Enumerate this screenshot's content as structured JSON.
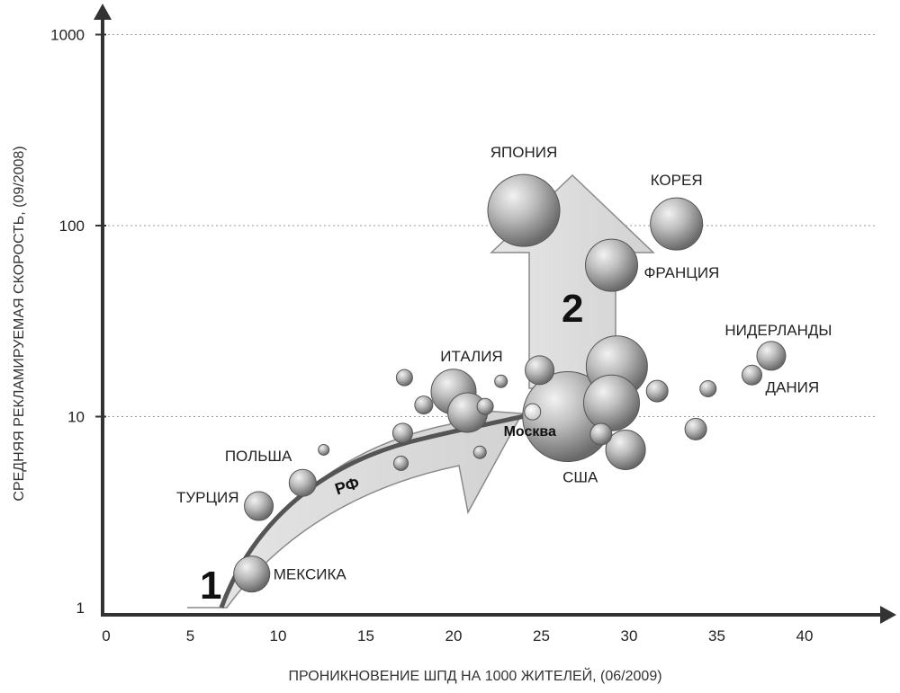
{
  "chart_data": {
    "type": "scatter",
    "xlabel": "ПРОНИКНОВЕНИЕ ШПД НА 1000 ЖИТЕЛЕЙ, (06/2009)",
    "ylabel": "СРЕДНЯЯ РЕКЛАМИРУЕМАЯ СКОРОСТЬ, (09/2008)",
    "xlim": [
      0,
      45
    ],
    "ylim": [
      1,
      1000
    ],
    "y_scale": "log",
    "x_ticks": [
      "0",
      "5",
      "10",
      "15",
      "20",
      "25",
      "30",
      "35",
      "40"
    ],
    "y_ticks": [
      "1",
      "10",
      "100",
      "1000"
    ],
    "grid": "horizontal dotted at 10, 100, 1000",
    "arrow_labels": [
      "1",
      "2"
    ],
    "path_label": "РФ",
    "points": [
      {
        "label": "МЕКСИКА",
        "x": 8.5,
        "y": 1.5,
        "r": 20
      },
      {
        "label": "ТУРЦИЯ",
        "x": 8.9,
        "y": 3.4,
        "r": 16
      },
      {
        "label": "ПОЛЬША",
        "x": 11.4,
        "y": 4.5,
        "r": 15
      },
      {
        "label": "",
        "x": 12.6,
        "y": 6.7,
        "r": 6
      },
      {
        "label": "",
        "x": 17.0,
        "y": 5.7,
        "r": 8
      },
      {
        "label": "",
        "x": 17.1,
        "y": 8.2,
        "r": 11
      },
      {
        "label": "",
        "x": 17.2,
        "y": 16.0,
        "r": 9
      },
      {
        "label": "",
        "x": 18.3,
        "y": 11.5,
        "r": 10
      },
      {
        "label": "ИТАЛИЯ",
        "x": 20.0,
        "y": 13.5,
        "r": 25
      },
      {
        "label": "",
        "x": 20.8,
        "y": 10.5,
        "r": 22
      },
      {
        "label": "",
        "x": 21.5,
        "y": 6.5,
        "r": 7
      },
      {
        "label": "",
        "x": 21.8,
        "y": 11.3,
        "r": 9
      },
      {
        "label": "",
        "x": 22.7,
        "y": 15.3,
        "r": 7
      },
      {
        "label": "",
        "x": 24.9,
        "y": 17.5,
        "r": 16
      },
      {
        "label": "США",
        "x": 26.5,
        "y": 10.0,
        "r": 50
      },
      {
        "label": "",
        "x": 28.4,
        "y": 8.1,
        "r": 12
      },
      {
        "label": "",
        "x": 29.0,
        "y": 11.8,
        "r": 31
      },
      {
        "label": "",
        "x": 29.3,
        "y": 18.3,
        "r": 34
      },
      {
        "label": "",
        "x": 29.8,
        "y": 6.7,
        "r": 22
      },
      {
        "label": "",
        "x": 31.6,
        "y": 13.6,
        "r": 12
      },
      {
        "label": "",
        "x": 33.8,
        "y": 8.6,
        "r": 12
      },
      {
        "label": "",
        "x": 34.5,
        "y": 14.0,
        "r": 9
      },
      {
        "label": "ДАНИЯ",
        "x": 37.0,
        "y": 16.5,
        "r": 11
      },
      {
        "label": "НИДЕРЛАНДЫ",
        "x": 38.1,
        "y": 20.8,
        "r": 16
      },
      {
        "label": "ЯПОНИЯ",
        "x": 24.0,
        "y": 120,
        "r": 40
      },
      {
        "label": "ФРАНЦИЯ",
        "x": 29.0,
        "y": 62,
        "r": 29
      },
      {
        "label": "КОРЕЯ",
        "x": 32.7,
        "y": 102,
        "r": 29
      },
      {
        "label": "Москва",
        "x": 24.5,
        "y": 10.6,
        "r": 9
      }
    ]
  }
}
